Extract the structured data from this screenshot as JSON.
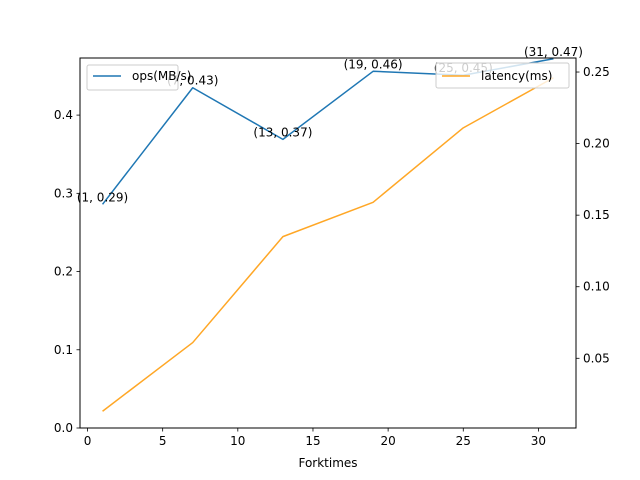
{
  "chart_data": {
    "type": "line",
    "xlabel": "Forktimes",
    "x": [
      1,
      7,
      13,
      19,
      25,
      31
    ],
    "xlim": [
      -0.5,
      32.5
    ],
    "xticks": [
      0,
      5,
      10,
      15,
      20,
      25,
      30
    ],
    "left_axis": {
      "ylim": [
        0.0,
        0.473
      ],
      "yticks": [
        0.0,
        0.1,
        0.2,
        0.3,
        0.4
      ]
    },
    "right_axis": {
      "ylim": [
        0.0013,
        0.2598
      ],
      "yticks": [
        0.05,
        0.1,
        0.15,
        0.2,
        0.25
      ]
    },
    "series": [
      {
        "name": "ops(MB/s)",
        "axis": "left",
        "color": "#1f77b4",
        "values": [
          0.286,
          0.435,
          0.369,
          0.456,
          0.451,
          0.472
        ],
        "labels": [
          "(1, 0.29)",
          "(7, 0.43)",
          "(13, 0.37)",
          "(19, 0.46)",
          "(25, 0.45)",
          "(31, 0.47)"
        ]
      },
      {
        "name": "latency(ms)",
        "axis": "right",
        "color": "#ffa726",
        "values": [
          0.013,
          0.061,
          0.135,
          0.159,
          0.211,
          0.246
        ]
      }
    ],
    "legend": [
      "upper-left",
      "upper-right"
    ],
    "grid": false
  }
}
